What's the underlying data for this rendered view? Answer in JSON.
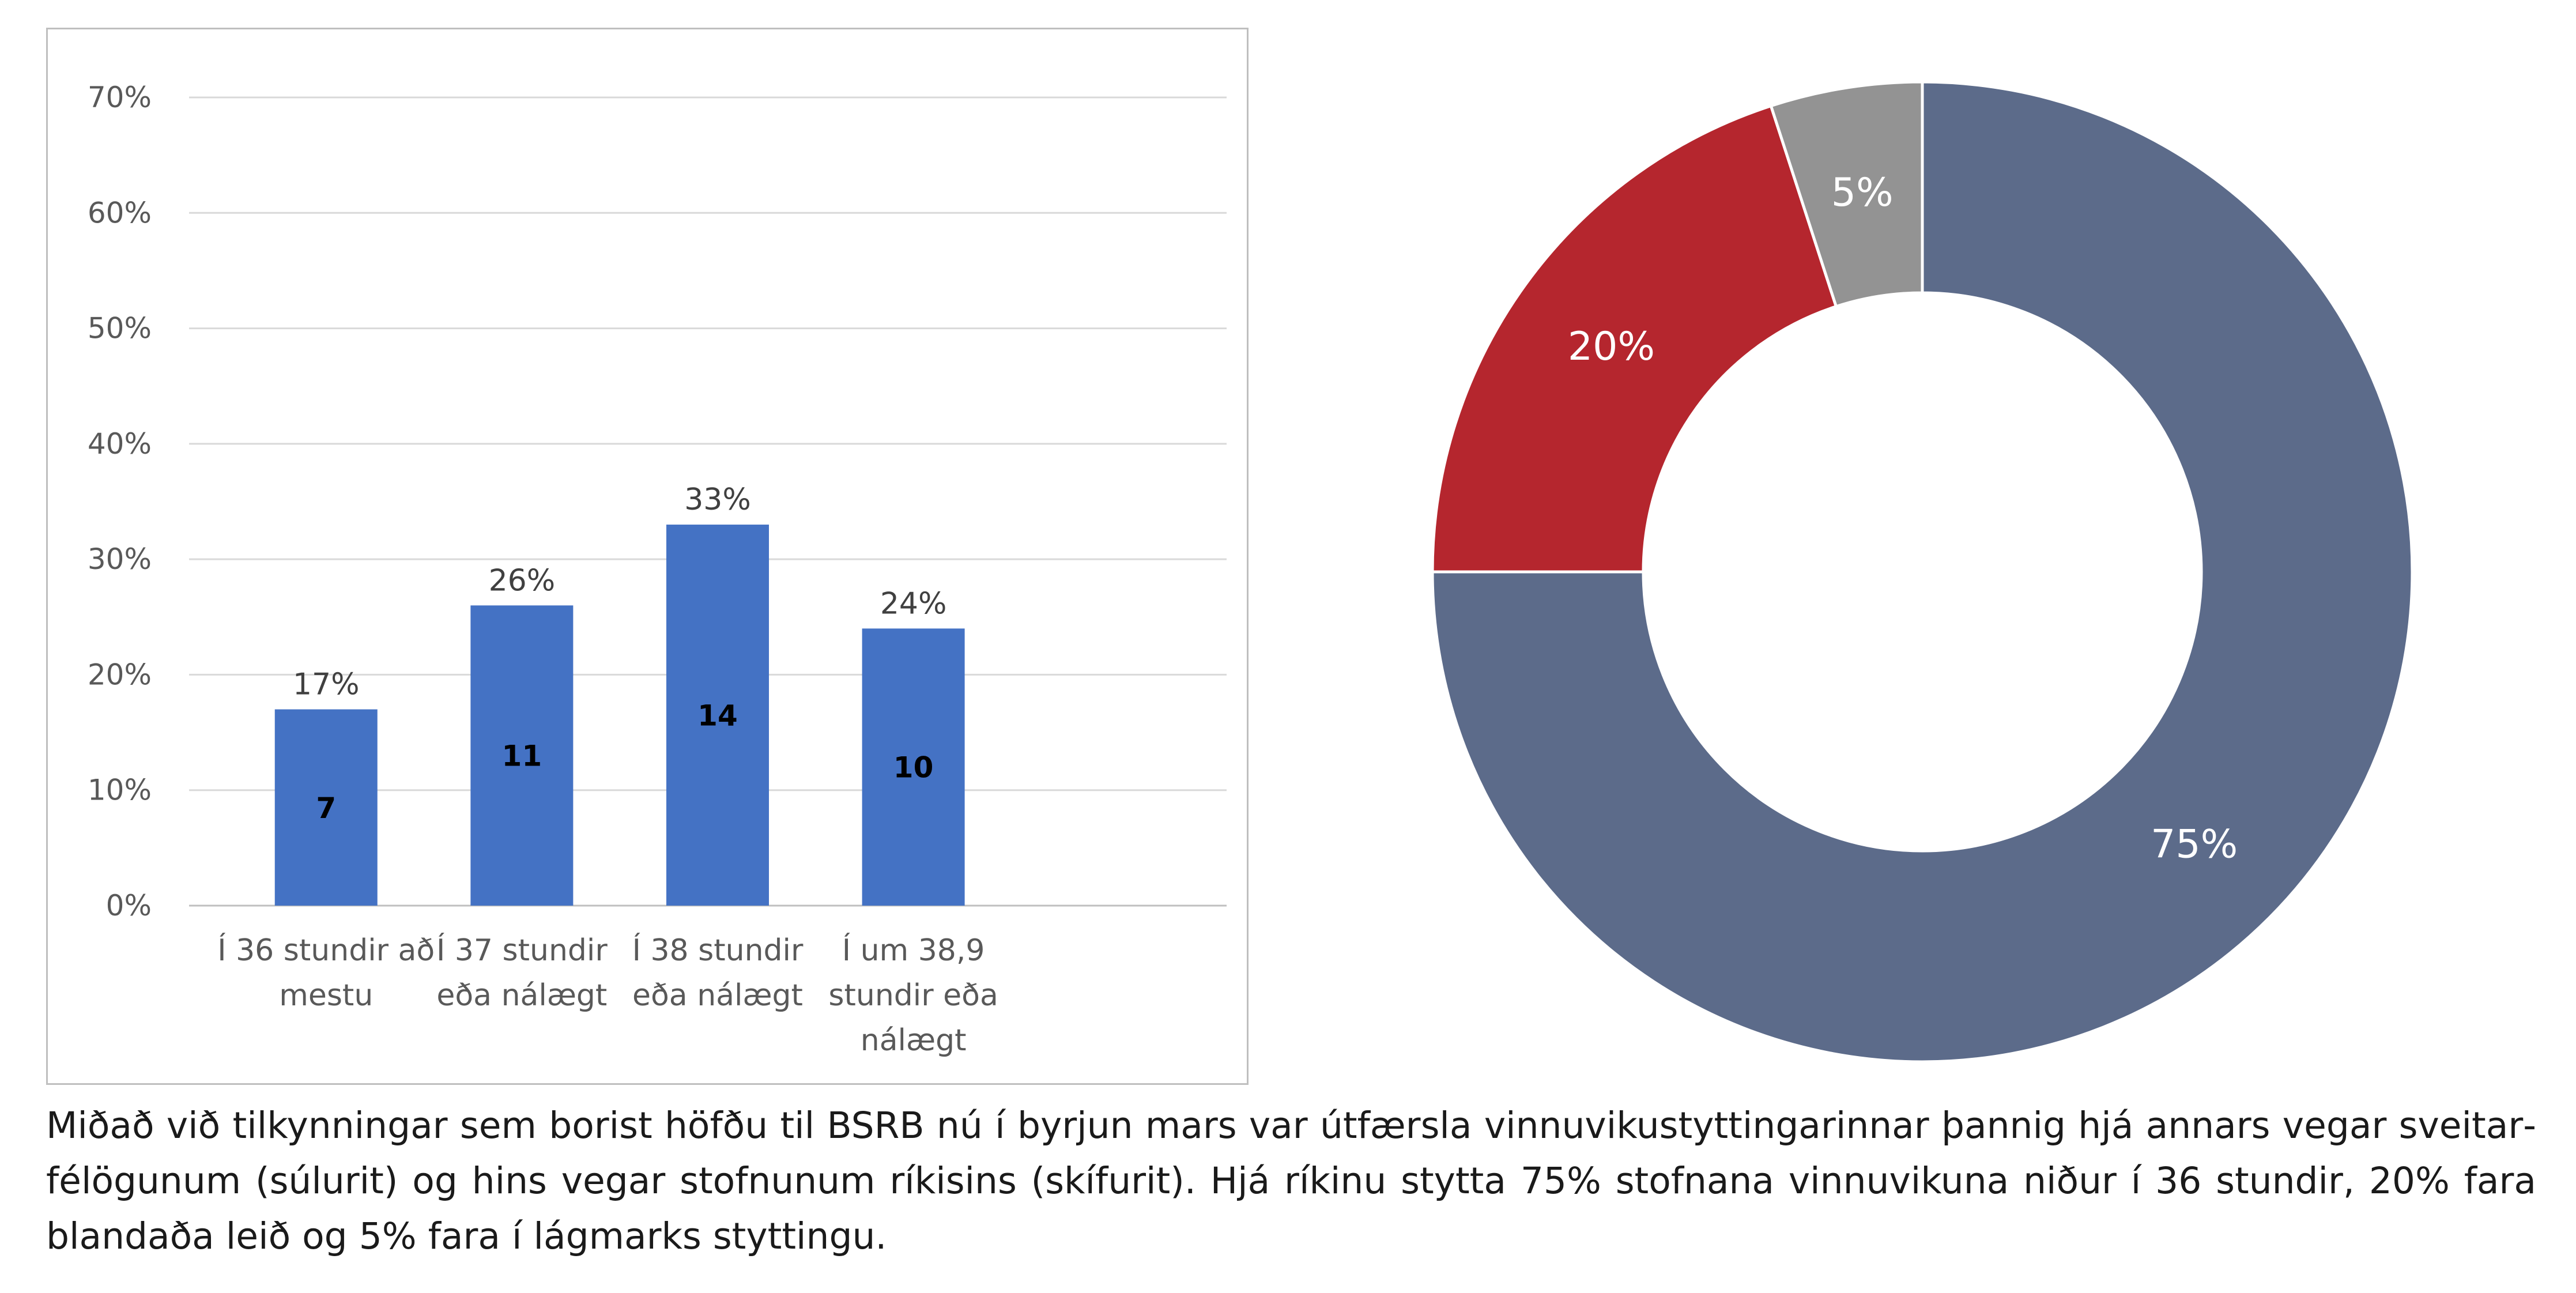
{
  "chart_data": [
    {
      "type": "bar",
      "categories": [
        [
          "Í 36 stundir að",
          "mestu"
        ],
        [
          "Í 37 stundir",
          "eða nálægt"
        ],
        [
          "Í 38 stundir",
          "eða nálægt"
        ],
        [
          "Í um 38,9",
          "stundir eða",
          "nálægt"
        ]
      ],
      "values": [
        17,
        26,
        33,
        24
      ],
      "value_labels": [
        "17%",
        "26%",
        "33%",
        "24%"
      ],
      "count_labels": [
        "7",
        "11",
        "14",
        "10"
      ],
      "ylim": [
        0,
        70
      ],
      "yticks": [
        "0%",
        "10%",
        "20%",
        "30%",
        "40%",
        "50%",
        "60%",
        "70%"
      ],
      "grid": true,
      "color": "#4472c4"
    },
    {
      "type": "pie",
      "donut": true,
      "values": [
        75,
        20,
        5
      ],
      "labels": [
        "75%",
        "20%",
        "5%"
      ],
      "colors": [
        "#5c6b8a",
        "#b5262e",
        "#939393"
      ]
    }
  ],
  "caption": "Miðað við tilkynningar sem borist höfðu til BSRB nú í byrjun mars var útfærsla vinnuvikustyttingarinnar þannig hjá annars vegar sveitar­félögunum (súlurit) og hins vegar stofnunum ríkisins (skífurit). Hjá ríkinu stytta 75% stofnana vinnuvikuna niður í 36 stundir, 20% fara blandaða leið og 5% fara í lágmarks styttingu."
}
